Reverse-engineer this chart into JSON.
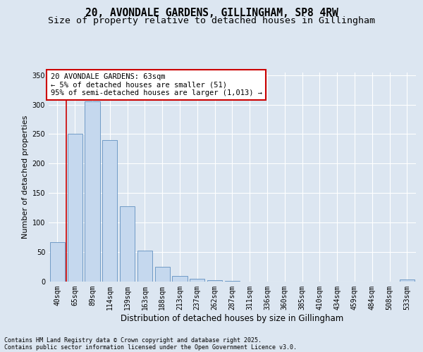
{
  "title": "20, AVONDALE GARDENS, GILLINGHAM, SP8 4RW",
  "subtitle": "Size of property relative to detached houses in Gillingham",
  "xlabel": "Distribution of detached houses by size in Gillingham",
  "ylabel": "Number of detached properties",
  "footnote1": "Contains HM Land Registry data © Crown copyright and database right 2025.",
  "footnote2": "Contains public sector information licensed under the Open Government Licence v3.0.",
  "categories": [
    "40sqm",
    "65sqm",
    "89sqm",
    "114sqm",
    "139sqm",
    "163sqm",
    "188sqm",
    "213sqm",
    "237sqm",
    "262sqm",
    "287sqm",
    "311sqm",
    "336sqm",
    "360sqm",
    "385sqm",
    "410sqm",
    "434sqm",
    "459sqm",
    "484sqm",
    "508sqm",
    "533sqm"
  ],
  "values": [
    67,
    250,
    305,
    240,
    128,
    53,
    25,
    10,
    5,
    2,
    1,
    0,
    0,
    0,
    0,
    0,
    0,
    0,
    0,
    0,
    3
  ],
  "bar_color": "#c5d8ee",
  "bar_edge_color": "#6090c0",
  "bar_edge_width": 0.6,
  "bg_color": "#dce6f1",
  "ylim_max": 355,
  "yticks": [
    0,
    50,
    100,
    150,
    200,
    250,
    300,
    350
  ],
  "annotation_line1": "20 AVONDALE GARDENS: 63sqm",
  "annotation_line2": "← 5% of detached houses are smaller (51)",
  "annotation_line3": "95% of semi-detached houses are larger (1,013) →",
  "vline_color": "#cc0000",
  "ann_box_edge_color": "#cc0000",
  "ann_box_face_color": "#ffffff",
  "title_fontsize": 10.5,
  "subtitle_fontsize": 9.5,
  "ylabel_fontsize": 8,
  "xlabel_fontsize": 8.5,
  "tick_fontsize": 7,
  "ann_fontsize": 7.5,
  "footnote_fontsize": 6
}
